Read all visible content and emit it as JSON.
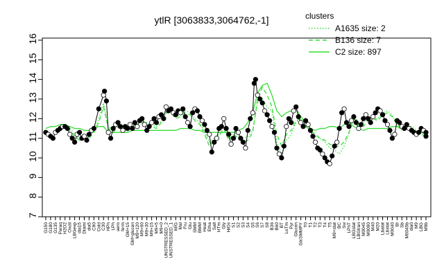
{
  "chart_data": {
    "type": "line",
    "title": "ytlR [3063833,3064762,-1]",
    "ylim": [
      7,
      16
    ],
    "yticks": [
      7,
      8,
      9,
      10,
      11,
      12,
      13,
      14,
      15,
      16
    ],
    "legend": {
      "title": "clusters",
      "placement": "top-right",
      "entries": [
        {
          "label": "A1635 size: 2",
          "style": "dotted"
        },
        {
          "label": "B136 size: 7",
          "style": "dashed"
        },
        {
          "label": "C2 size: 897",
          "style": "solid"
        }
      ]
    },
    "x_tick_labels": [
      "G150",
      "G180",
      "G135",
      "Paraq",
      "H2O2",
      "Oxctl",
      "LBGexp",
      "dia15",
      "Diami",
      "dia5",
      "C90",
      "Cold",
      "C30",
      "HPh",
      "LPh",
      "aero",
      "ferm",
      "GM+15",
      "GM+glucan",
      "M9+120",
      "M9+60",
      "M9+30",
      "M9+15",
      "M9+5",
      "M9+0",
      "UNSTRESSED_2",
      "UNSTRESSED_1",
      "M/G",
      "Mal",
      "Fru",
      "Glu",
      "SMM",
      "BMM",
      "Heat",
      "Etha",
      "Salt",
      "HTm",
      "Gly",
      "HiOs",
      "S1",
      "S2",
      "S3",
      "S4",
      "S5",
      "S6",
      "S7",
      "S8",
      "B36",
      "B60",
      "BT",
      "LoTm",
      "Pyr",
      "Glucon",
      "GlcSMMPY",
      "T0",
      "T1",
      "T2",
      "T3",
      "T4",
      "T5",
      "M9+stat",
      "BC",
      "Sw",
      "LPhT",
      "LBGstat",
      "LBGtran",
      "M0045",
      "M0090",
      "M40",
      "M20",
      "Lbatat",
      "Lbstat",
      "M0040",
      "BI",
      "Sb",
      "M0045b",
      "dia0",
      "M9",
      "LBG",
      "M9b"
    ],
    "series": [
      {
        "name": "A1635 size: 2",
        "style": "dotted",
        "values": [
          11.4,
          11.1,
          11.3,
          11.5,
          11.6,
          11.5,
          11.2,
          11.0,
          11.1,
          11.1,
          11.4,
          12.0,
          12.8,
          11.6,
          11.4,
          11.7,
          11.5,
          11.5,
          11.7,
          11.8,
          11.9,
          11.8,
          11.7,
          11.6,
          11.9,
          12.4,
          12.4,
          12.1,
          12.2,
          12.4,
          12.3,
          12.0,
          11.8,
          11.3,
          10.8,
          11.0,
          11.2,
          11.6,
          11.0,
          11.3,
          11.2,
          11.0,
          11.1,
          11.4,
          12.8,
          13.0,
          12.6,
          12.4,
          10.8,
          10.2,
          10.9,
          11.2,
          11.8,
          12.0,
          11.6,
          11.4,
          11.1,
          11.0,
          10.8,
          10.5,
          10.4,
          10.2,
          10.6,
          11.2,
          12.2,
          11.8,
          11.8,
          12.0,
          12.0,
          12.0,
          12.3,
          12.4,
          12.2,
          11.6,
          11.4,
          11.6,
          11.6,
          11.4,
          11.3,
          11.3
        ]
      },
      {
        "name": "B136 size: 7",
        "style": "dashed",
        "values": [
          11.3,
          11.0,
          11.2,
          11.5,
          11.5,
          11.4,
          11.1,
          10.9,
          11.0,
          11.0,
          11.3,
          11.8,
          12.6,
          11.5,
          11.3,
          11.6,
          11.4,
          11.4,
          11.6,
          11.7,
          11.8,
          11.7,
          11.6,
          11.5,
          11.8,
          12.3,
          12.3,
          12.0,
          12.1,
          12.3,
          12.2,
          11.9,
          11.7,
          11.2,
          10.6,
          10.9,
          11.1,
          11.5,
          10.9,
          11.2,
          11.0,
          10.8,
          10.9,
          11.3,
          13.0,
          13.6,
          13.2,
          12.6,
          11.2,
          10.6,
          11.2,
          11.4,
          11.9,
          12.0,
          11.6,
          11.4,
          11.2,
          11.0,
          10.9,
          10.7,
          10.6,
          10.6,
          10.8,
          11.3,
          12.0,
          11.7,
          11.6,
          11.9,
          12.0,
          11.9,
          12.2,
          12.3,
          12.1,
          11.7,
          11.5,
          11.6,
          11.5,
          11.4,
          11.2,
          11.1
        ]
      },
      {
        "name": "C2 size: 897",
        "style": "solid",
        "values": [
          11.5,
          11.6,
          11.6,
          11.7,
          11.7,
          11.6,
          11.5,
          11.5,
          11.4,
          11.4,
          11.5,
          11.6,
          11.6,
          11.3,
          11.3,
          11.3,
          11.3,
          11.3,
          11.4,
          11.4,
          11.4,
          11.4,
          11.4,
          11.4,
          11.4,
          11.4,
          11.4,
          11.4,
          11.5,
          11.5,
          11.5,
          11.4,
          11.4,
          11.3,
          11.3,
          11.3,
          11.3,
          11.3,
          11.3,
          11.3,
          11.4,
          11.5,
          11.8,
          12.3,
          13.3,
          13.7,
          13.8,
          13.2,
          12.4,
          12.1,
          12.3,
          12.4,
          12.5,
          12.1,
          11.8,
          11.5,
          11.4,
          11.5,
          11.5,
          11.6,
          11.6,
          11.5,
          11.7,
          11.8,
          11.6,
          11.5,
          11.4,
          11.5,
          11.5,
          11.5,
          11.5,
          11.5,
          11.6,
          11.6,
          11.5,
          11.5,
          11.4,
          11.3,
          11.3,
          11.2
        ]
      }
    ],
    "points": [
      [
        0,
        11.3
      ],
      [
        0.5,
        11.2
      ],
      [
        1,
        11.1
      ],
      [
        1.5,
        11.0
      ],
      [
        2,
        11.3
      ],
      [
        2.5,
        11.4
      ],
      [
        3,
        11.5
      ],
      [
        3.5,
        11.6
      ],
      [
        4,
        11.6
      ],
      [
        4.5,
        11.5
      ],
      [
        5,
        11.2
      ],
      [
        5.5,
        11.0
      ],
      [
        6,
        10.8
      ],
      [
        6.5,
        11.2
      ],
      [
        7,
        11.3
      ],
      [
        7.5,
        11.0
      ],
      [
        8,
        11.1
      ],
      [
        8.5,
        10.9
      ],
      [
        9,
        11.2
      ],
      [
        9.5,
        11.4
      ],
      [
        10,
        11.5
      ],
      [
        11,
        12.5
      ],
      [
        12,
        13.2
      ],
      [
        12.2,
        13.4
      ],
      [
        12.6,
        12.9
      ],
      [
        13,
        11.3
      ],
      [
        13.5,
        11.0
      ],
      [
        14,
        11.5
      ],
      [
        14.5,
        11.7
      ],
      [
        15,
        11.8
      ],
      [
        15.5,
        11.6
      ],
      [
        16,
        11.4
      ],
      [
        16.5,
        11.6
      ],
      [
        17,
        11.5
      ],
      [
        17.5,
        11.7
      ],
      [
        18,
        11.5
      ],
      [
        18.5,
        11.8
      ],
      [
        19,
        11.6
      ],
      [
        19.5,
        11.9
      ],
      [
        20,
        12.0
      ],
      [
        20.5,
        11.7
      ],
      [
        21,
        11.4
      ],
      [
        21.5,
        11.6
      ],
      [
        22,
        11.8
      ],
      [
        22.5,
        12.0
      ],
      [
        23,
        11.8
      ],
      [
        23.5,
        12.1
      ],
      [
        24,
        12.2
      ],
      [
        24.5,
        12.0
      ],
      [
        25,
        12.6
      ],
      [
        25.5,
        12.4
      ],
      [
        26,
        12.5
      ],
      [
        26.5,
        12.3
      ],
      [
        27,
        12.2
      ],
      [
        27.5,
        12.4
      ],
      [
        28,
        12.3
      ],
      [
        28.5,
        12.5
      ],
      [
        29,
        12.1
      ],
      [
        29.5,
        11.8
      ],
      [
        30,
        11.6
      ],
      [
        30.5,
        12.3
      ],
      [
        31,
        12.5
      ],
      [
        31.5,
        12.4
      ],
      [
        32,
        12.1
      ],
      [
        32.5,
        11.9
      ],
      [
        33,
        11.7
      ],
      [
        33.5,
        11.4
      ],
      [
        34,
        11.2
      ],
      [
        34.5,
        10.3
      ],
      [
        35,
        10.8
      ],
      [
        35.5,
        11.0
      ],
      [
        36,
        11.5
      ],
      [
        36.5,
        11.6
      ],
      [
        37,
        12.0
      ],
      [
        37.5,
        11.5
      ],
      [
        38,
        11.2
      ],
      [
        38.5,
        10.7
      ],
      [
        39,
        11.0
      ],
      [
        39.5,
        11.5
      ],
      [
        40,
        11.3
      ],
      [
        40.5,
        11.0
      ],
      [
        41,
        10.8
      ],
      [
        41.5,
        10.5
      ],
      [
        42,
        11.4
      ],
      [
        42.5,
        12.0
      ],
      [
        43,
        12.3
      ],
      [
        43.3,
        13.8
      ],
      [
        43.6,
        14.0
      ],
      [
        44,
        13.2
      ],
      [
        44.5,
        13.0
      ],
      [
        45,
        12.8
      ],
      [
        45.5,
        12.4
      ],
      [
        46,
        12.2
      ],
      [
        46.5,
        11.9
      ],
      [
        47,
        11.6
      ],
      [
        47.5,
        11.3
      ],
      [
        48,
        10.5
      ],
      [
        48.5,
        10.2
      ],
      [
        49,
        10.0
      ],
      [
        49.5,
        10.6
      ],
      [
        50,
        11.6
      ],
      [
        50.5,
        12.0
      ],
      [
        51,
        11.8
      ],
      [
        51.5,
        12.4
      ],
      [
        52,
        12.6
      ],
      [
        52.5,
        12.1
      ],
      [
        53,
        11.8
      ],
      [
        53.5,
        11.6
      ],
      [
        54,
        11.9
      ],
      [
        54.5,
        11.7
      ],
      [
        55,
        11.4
      ],
      [
        55.5,
        11.1
      ],
      [
        56,
        10.8
      ],
      [
        56.5,
        10.5
      ],
      [
        57,
        10.4
      ],
      [
        57.5,
        10.2
      ],
      [
        58,
        10.0
      ],
      [
        58.5,
        9.8
      ],
      [
        59,
        9.7
      ],
      [
        59.5,
        10.1
      ],
      [
        60,
        10.6
      ],
      [
        60.5,
        10.8
      ],
      [
        61,
        11.5
      ],
      [
        61.5,
        12.3
      ],
      [
        62,
        12.5
      ],
      [
        62.5,
        11.8
      ],
      [
        63,
        11.6
      ],
      [
        63.5,
        11.9
      ],
      [
        64,
        12.1
      ],
      [
        64.5,
        11.8
      ],
      [
        65,
        11.5
      ],
      [
        65.5,
        11.7
      ],
      [
        66,
        12.0
      ],
      [
        66.5,
        12.2
      ],
      [
        67,
        12.0
      ],
      [
        67.5,
        11.8
      ],
      [
        68,
        12.1
      ],
      [
        68.5,
        12.3
      ],
      [
        69,
        12.5
      ],
      [
        69.5,
        12.4
      ],
      [
        70,
        12.2
      ],
      [
        70.5,
        11.9
      ],
      [
        71,
        11.7
      ],
      [
        71.5,
        11.4
      ],
      [
        72,
        11.0
      ],
      [
        72.5,
        11.2
      ],
      [
        73,
        11.9
      ],
      [
        73.5,
        11.8
      ],
      [
        74,
        11.6
      ],
      [
        74.5,
        11.5
      ],
      [
        75,
        11.7
      ],
      [
        75.5,
        11.5
      ],
      [
        76,
        11.4
      ],
      [
        76.5,
        11.3
      ],
      [
        77,
        11.2
      ],
      [
        77.5,
        11.3
      ],
      [
        78,
        11.5
      ],
      [
        78.5,
        11.4
      ],
      [
        79,
        11.3
      ],
      [
        79,
        11.1
      ]
    ],
    "x_range": [
      0,
      79
    ]
  }
}
